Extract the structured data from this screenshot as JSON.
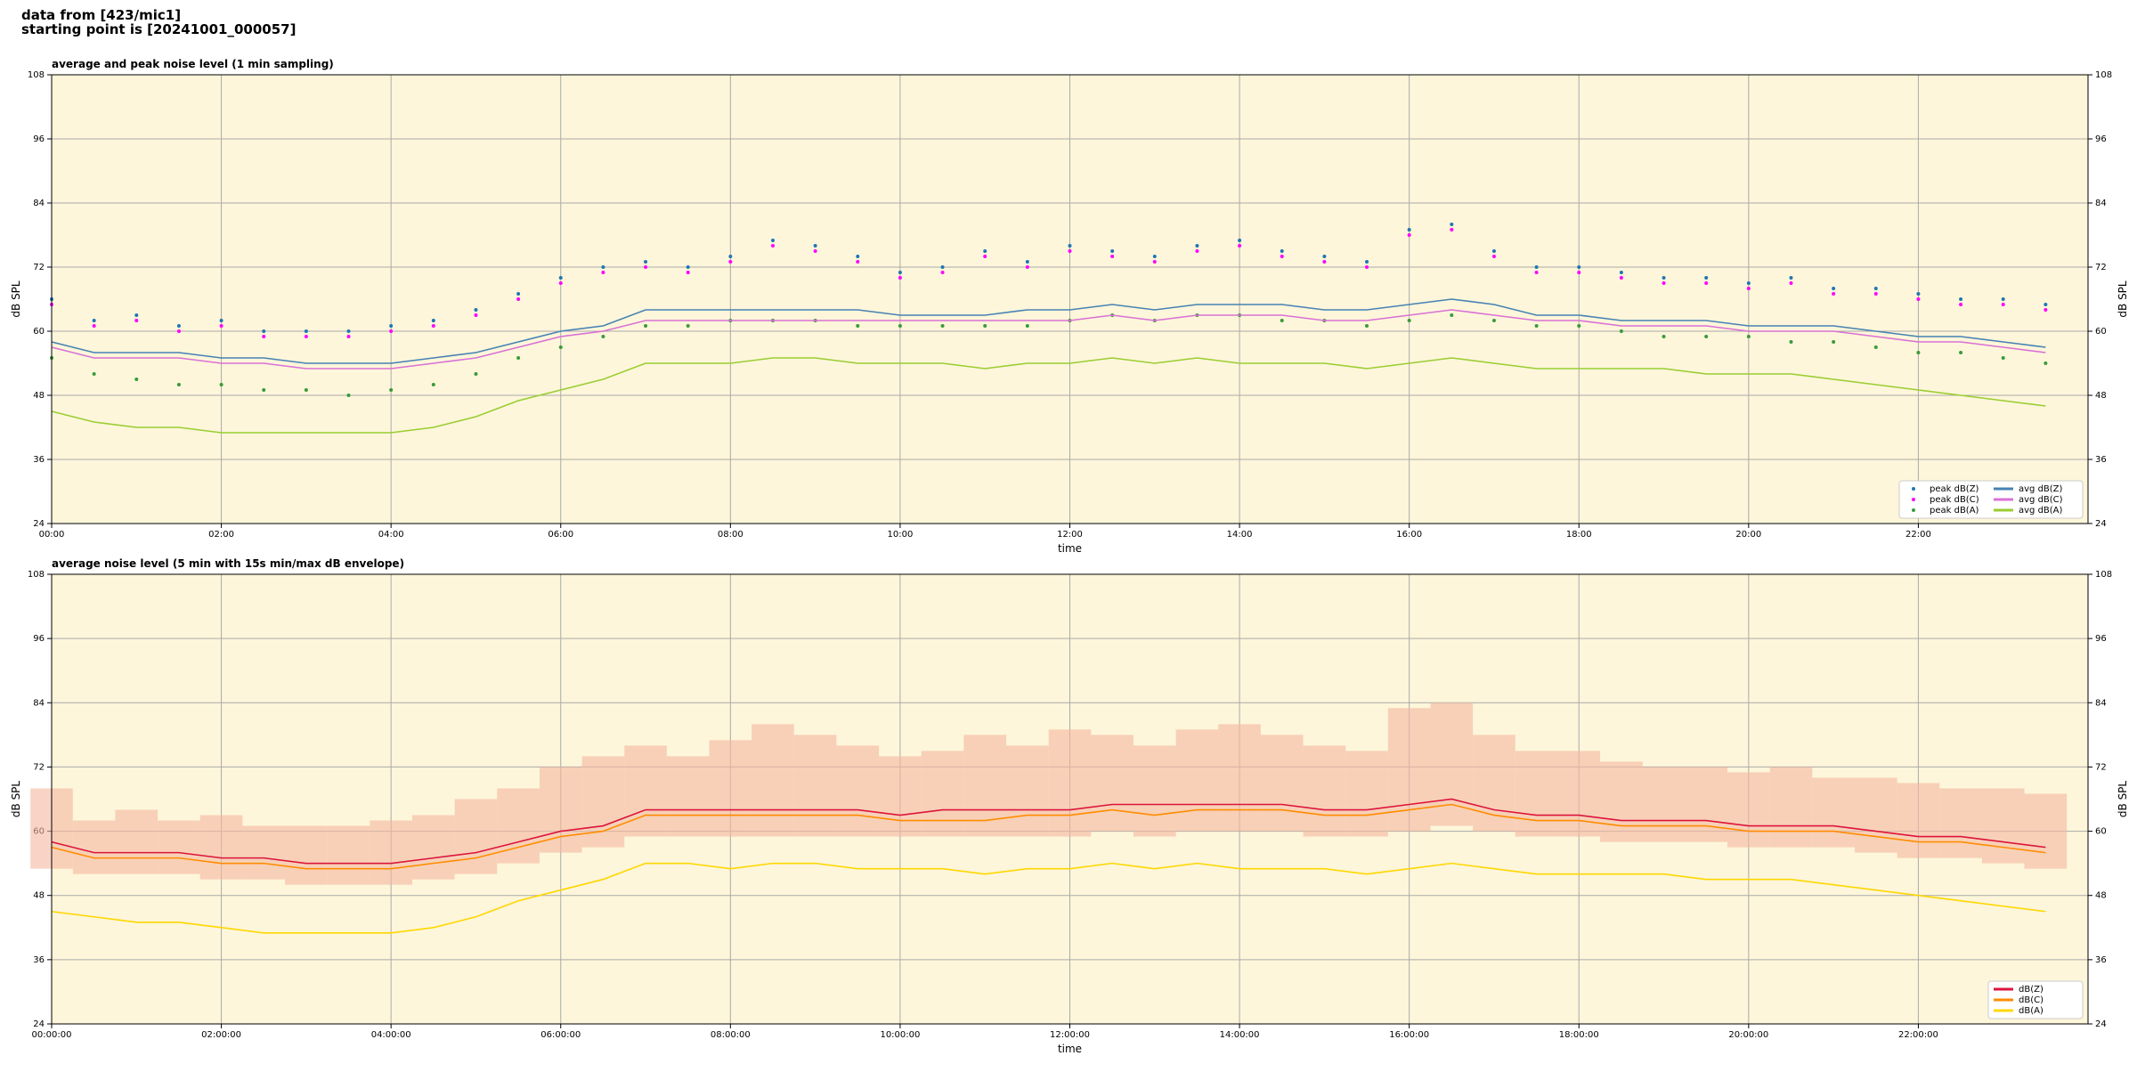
{
  "header": {
    "source": "data from [423/mic1]",
    "start": "starting point is [20241001_000057]"
  },
  "chart_data": [
    {
      "type": "line",
      "title": "average and peak noise level (1 min sampling)",
      "x_label": "time",
      "y_label": "dB SPL",
      "mirror_y_axis": true,
      "grid": true,
      "legend": "lower right",
      "legend_columns": 2,
      "background": "#fdf6da",
      "xlim": [
        0,
        24
      ],
      "ylim": [
        24,
        108
      ],
      "xticks": [
        {
          "value": 0,
          "label": "00:00"
        },
        {
          "value": 2,
          "label": "02:00"
        },
        {
          "value": 4,
          "label": "04:00"
        },
        {
          "value": 6,
          "label": "06:00"
        },
        {
          "value": 8,
          "label": "08:00"
        },
        {
          "value": 10,
          "label": "10:00"
        },
        {
          "value": 12,
          "label": "12:00"
        },
        {
          "value": 14,
          "label": "14:00"
        },
        {
          "value": 16,
          "label": "16:00"
        },
        {
          "value": 18,
          "label": "18:00"
        },
        {
          "value": 20,
          "label": "20:00"
        },
        {
          "value": 22,
          "label": "22:00"
        }
      ],
      "yticks": [
        24,
        36,
        48,
        60,
        72,
        84,
        96,
        108
      ],
      "x": [
        0,
        0.5,
        1,
        1.5,
        2,
        2.5,
        3,
        3.5,
        4,
        4.5,
        5,
        5.5,
        6,
        6.5,
        7,
        7.5,
        8,
        8.5,
        9,
        9.5,
        10,
        10.5,
        11,
        11.5,
        12,
        12.5,
        13,
        13.5,
        14,
        14.5,
        15,
        15.5,
        16,
        16.5,
        17,
        17.5,
        18,
        18.5,
        19,
        19.5,
        20,
        20.5,
        21,
        21.5,
        22,
        22.5,
        23,
        23.5
      ],
      "series": [
        {
          "name": "peak dB(Z)",
          "style": "dots",
          "color": "#1f77b4",
          "values": [
            66,
            62,
            63,
            61,
            62,
            60,
            60,
            60,
            61,
            62,
            64,
            67,
            70,
            72,
            73,
            72,
            74,
            77,
            76,
            74,
            71,
            72,
            75,
            73,
            76,
            75,
            74,
            76,
            77,
            75,
            74,
            73,
            79,
            80,
            75,
            72,
            72,
            71,
            70,
            70,
            69,
            70,
            68,
            68,
            67,
            66,
            66,
            65
          ]
        },
        {
          "name": "peak dB(C)",
          "style": "dots",
          "color": "#ff00ff",
          "values": [
            65,
            61,
            62,
            60,
            61,
            59,
            59,
            59,
            60,
            61,
            63,
            66,
            69,
            71,
            72,
            71,
            73,
            76,
            75,
            73,
            70,
            71,
            74,
            72,
            75,
            74,
            73,
            75,
            76,
            74,
            73,
            72,
            78,
            79,
            74,
            71,
            71,
            70,
            69,
            69,
            68,
            69,
            67,
            67,
            66,
            65,
            65,
            64
          ]
        },
        {
          "name": "peak dB(A)",
          "style": "dots",
          "color": "#3a9a3a",
          "values": [
            55,
            52,
            51,
            50,
            50,
            49,
            49,
            48,
            49,
            50,
            52,
            55,
            57,
            59,
            61,
            61,
            62,
            62,
            62,
            61,
            61,
            61,
            61,
            61,
            62,
            63,
            62,
            63,
            63,
            62,
            62,
            61,
            62,
            63,
            62,
            61,
            61,
            60,
            59,
            59,
            59,
            58,
            58,
            57,
            56,
            56,
            55,
            54
          ]
        },
        {
          "name": "avg dB(Z)",
          "style": "line",
          "color": "#4682b4",
          "values": [
            58,
            56,
            56,
            56,
            55,
            55,
            54,
            54,
            54,
            55,
            56,
            58,
            60,
            61,
            64,
            64,
            64,
            64,
            64,
            64,
            63,
            63,
            63,
            64,
            64,
            65,
            64,
            65,
            65,
            65,
            64,
            64,
            65,
            66,
            65,
            63,
            63,
            62,
            62,
            62,
            61,
            61,
            61,
            60,
            59,
            59,
            58,
            57
          ]
        },
        {
          "name": "avg dB(C)",
          "style": "line",
          "color": "#da70d6",
          "values": [
            57,
            55,
            55,
            55,
            54,
            54,
            53,
            53,
            53,
            54,
            55,
            57,
            59,
            60,
            62,
            62,
            62,
            62,
            62,
            62,
            62,
            62,
            62,
            62,
            62,
            63,
            62,
            63,
            63,
            63,
            62,
            62,
            63,
            64,
            63,
            62,
            62,
            61,
            61,
            61,
            60,
            60,
            60,
            59,
            58,
            58,
            57,
            56
          ]
        },
        {
          "name": "avg dB(A)",
          "style": "line",
          "color": "#9acd32",
          "values": [
            45,
            43,
            42,
            42,
            41,
            41,
            41,
            41,
            41,
            42,
            44,
            47,
            49,
            51,
            54,
            54,
            54,
            55,
            55,
            54,
            54,
            54,
            53,
            54,
            54,
            55,
            54,
            55,
            54,
            54,
            54,
            53,
            54,
            55,
            54,
            53,
            53,
            53,
            53,
            52,
            52,
            52,
            51,
            50,
            49,
            48,
            47,
            46
          ]
        }
      ]
    },
    {
      "type": "line",
      "title": "average noise level (5 min with 15s min/max dB envelope)",
      "x_label": "time",
      "y_label": "dB SPL",
      "mirror_y_axis": true,
      "grid": true,
      "legend": "lower right",
      "legend_columns": 1,
      "background": "#fdf6da",
      "xlim": [
        0,
        24
      ],
      "ylim": [
        24,
        108
      ],
      "xticks": [
        {
          "value": 0,
          "label": "00:00:00"
        },
        {
          "value": 2,
          "label": "02:00:00"
        },
        {
          "value": 4,
          "label": "04:00:00"
        },
        {
          "value": 6,
          "label": "06:00:00"
        },
        {
          "value": 8,
          "label": "08:00:00"
        },
        {
          "value": 10,
          "label": "10:00:00"
        },
        {
          "value": 12,
          "label": "12:00:00"
        },
        {
          "value": 14,
          "label": "14:00:00"
        },
        {
          "value": 16,
          "label": "16:00:00"
        },
        {
          "value": 18,
          "label": "18:00:00"
        },
        {
          "value": 20,
          "label": "20:00:00"
        },
        {
          "value": 22,
          "label": "22:00:00"
        }
      ],
      "yticks": [
        24,
        36,
        48,
        60,
        72,
        84,
        96,
        108
      ],
      "x": [
        0,
        0.5,
        1,
        1.5,
        2,
        2.5,
        3,
        3.5,
        4,
        4.5,
        5,
        5.5,
        6,
        6.5,
        7,
        7.5,
        8,
        8.5,
        9,
        9.5,
        10,
        10.5,
        11,
        11.5,
        12,
        12.5,
        13,
        13.5,
        14,
        14.5,
        15,
        15.5,
        16,
        16.5,
        17,
        17.5,
        18,
        18.5,
        19,
        19.5,
        20,
        20.5,
        21,
        21.5,
        22,
        22.5,
        23,
        23.5
      ],
      "envelope": {
        "color": "#f5b8a0",
        "lower": [
          53,
          52,
          52,
          52,
          51,
          51,
          50,
          50,
          50,
          51,
          52,
          54,
          56,
          57,
          59,
          59,
          59,
          59,
          59,
          59,
          59,
          59,
          59,
          59,
          59,
          60,
          59,
          60,
          60,
          60,
          59,
          59,
          60,
          61,
          60,
          59,
          59,
          58,
          58,
          58,
          57,
          57,
          57,
          56,
          55,
          55,
          54,
          53
        ],
        "upper": [
          68,
          62,
          64,
          62,
          63,
          61,
          61,
          61,
          62,
          63,
          66,
          68,
          72,
          74,
          76,
          74,
          77,
          80,
          78,
          76,
          74,
          75,
          78,
          76,
          79,
          78,
          76,
          79,
          80,
          78,
          76,
          75,
          83,
          84,
          78,
          75,
          75,
          73,
          72,
          72,
          71,
          72,
          70,
          70,
          69,
          68,
          68,
          67
        ]
      },
      "series": [
        {
          "name": "dB(Z)",
          "style": "line",
          "color": "#dc143c",
          "values": [
            58,
            56,
            56,
            56,
            55,
            55,
            54,
            54,
            54,
            55,
            56,
            58,
            60,
            61,
            64,
            64,
            64,
            64,
            64,
            64,
            63,
            64,
            64,
            64,
            64,
            65,
            65,
            65,
            65,
            65,
            64,
            64,
            65,
            66,
            64,
            63,
            63,
            62,
            62,
            62,
            61,
            61,
            61,
            60,
            59,
            59,
            58,
            57
          ]
        },
        {
          "name": "dB(C)",
          "style": "line",
          "color": "#ff8c00",
          "values": [
            57,
            55,
            55,
            55,
            54,
            54,
            53,
            53,
            53,
            54,
            55,
            57,
            59,
            60,
            63,
            63,
            63,
            63,
            63,
            63,
            62,
            62,
            62,
            63,
            63,
            64,
            63,
            64,
            64,
            64,
            63,
            63,
            64,
            65,
            63,
            62,
            62,
            61,
            61,
            61,
            60,
            60,
            60,
            59,
            58,
            58,
            57,
            56
          ]
        },
        {
          "name": "dB(A)",
          "style": "line",
          "color": "#ffd700",
          "values": [
            45,
            44,
            43,
            43,
            42,
            41,
            41,
            41,
            41,
            42,
            44,
            47,
            49,
            51,
            54,
            54,
            53,
            54,
            54,
            53,
            53,
            53,
            52,
            53,
            53,
            54,
            53,
            54,
            53,
            53,
            53,
            52,
            53,
            54,
            53,
            52,
            52,
            52,
            52,
            51,
            51,
            51,
            50,
            49,
            48,
            47,
            46,
            45
          ]
        }
      ]
    }
  ]
}
